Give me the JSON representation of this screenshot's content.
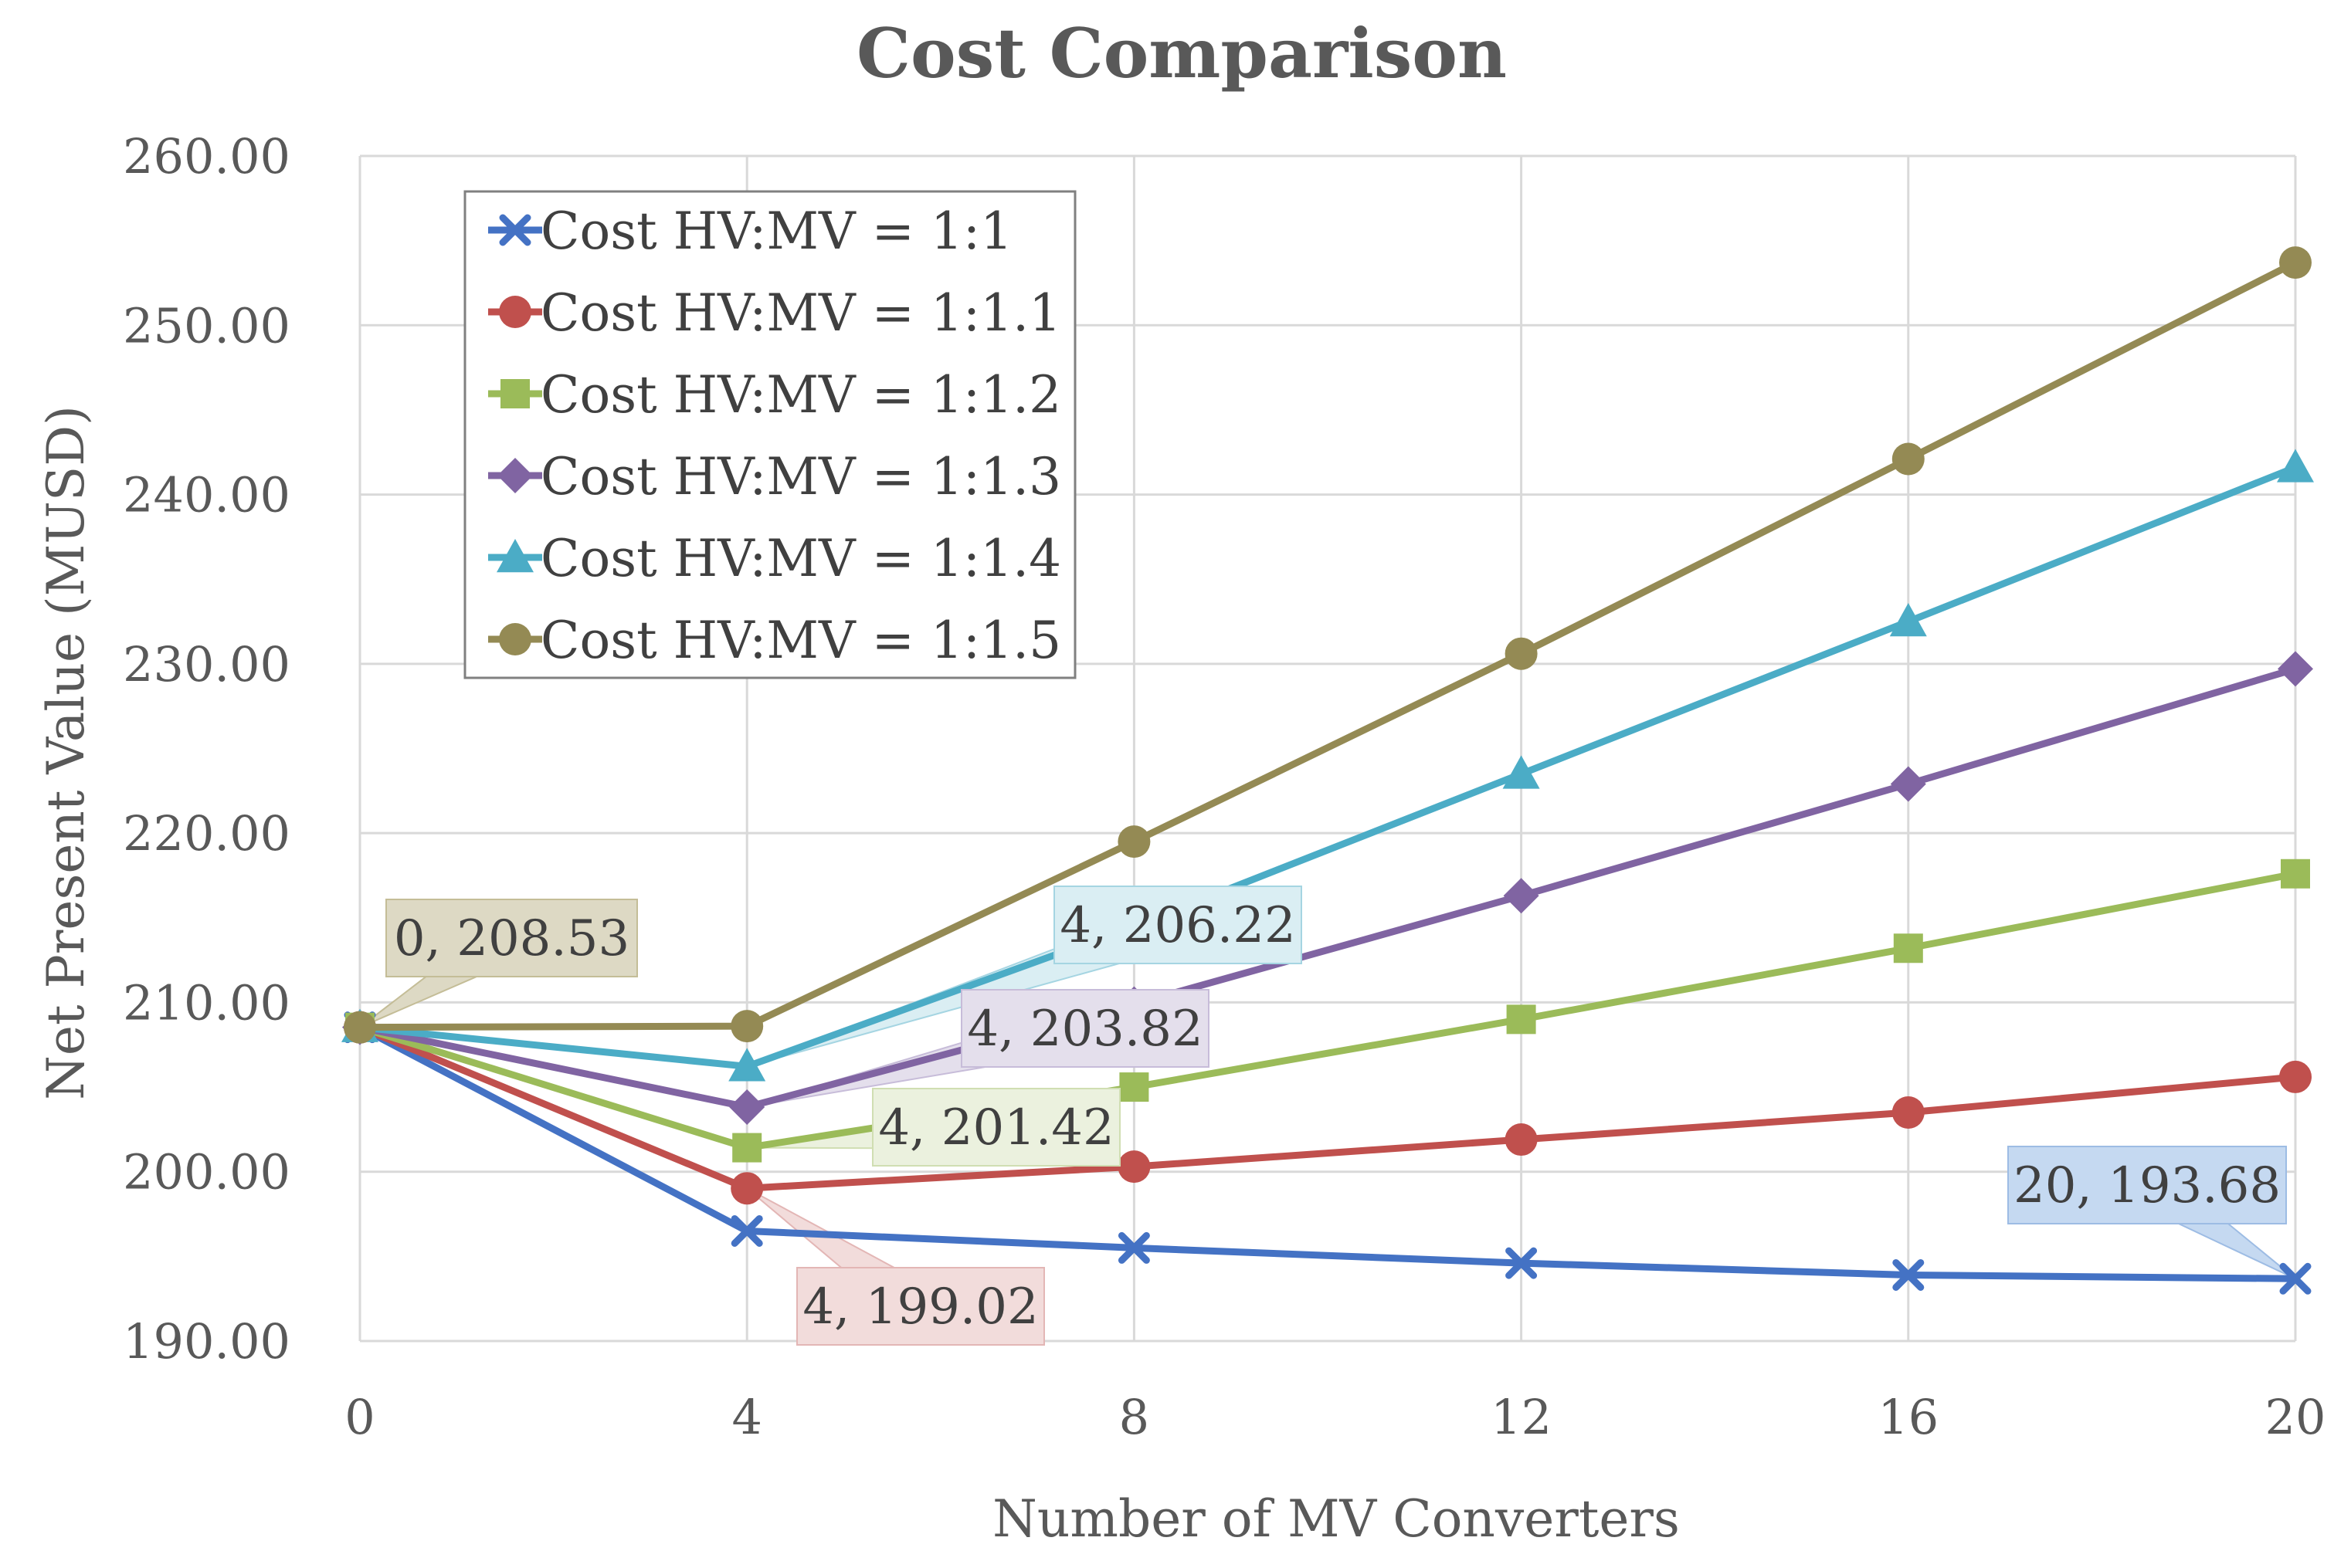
{
  "chart_data": {
    "type": "line",
    "title": "Cost Comparison",
    "xlabel": "Number of MV Converters",
    "ylabel": "Net Present Value (MUSD)",
    "x": [
      0,
      4,
      8,
      12,
      16,
      20
    ],
    "xticks": [
      "0",
      "4",
      "8",
      "12",
      "16",
      "20"
    ],
    "yticks": [
      "190.00",
      "200.00",
      "210.00",
      "220.00",
      "230.00",
      "240.00",
      "250.00",
      "260.00"
    ],
    "ylim": [
      190,
      260
    ],
    "grid": true,
    "legend_position": "top-left",
    "series": [
      {
        "name": "Cost HV:MV = 1:1",
        "color": "#4472C4",
        "marker": "x",
        "values": [
          208.53,
          196.5,
          195.5,
          194.6,
          193.9,
          193.68
        ]
      },
      {
        "name": "Cost HV:MV = 1:1.1",
        "color": "#C0504D",
        "marker": "circle",
        "values": [
          208.53,
          199.02,
          200.3,
          201.9,
          203.5,
          205.6
        ]
      },
      {
        "name": "Cost HV:MV = 1:1.2",
        "color": "#9BBB59",
        "marker": "square",
        "values": [
          208.53,
          201.42,
          205.0,
          209.0,
          213.2,
          217.6
        ]
      },
      {
        "name": "Cost HV:MV = 1:1.3",
        "color": "#8064A2",
        "marker": "diamond",
        "values": [
          208.53,
          203.82,
          209.9,
          216.3,
          222.9,
          229.7
        ]
      },
      {
        "name": "Cost HV:MV = 1:1.4",
        "color": "#4BACC6",
        "marker": "triangle",
        "values": [
          208.53,
          206.22,
          214.5,
          223.5,
          232.5,
          241.6
        ]
      },
      {
        "name": "Cost HV:MV = 1:1.5",
        "color": "#948A54",
        "marker": "circle",
        "values": [
          208.53,
          208.6,
          219.5,
          230.6,
          242.1,
          253.7
        ]
      }
    ],
    "annotations": [
      {
        "text": "0,  208.53",
        "series": 5,
        "point": 0,
        "fill": "#DDD9C4",
        "stroke": "#C4BD97"
      },
      {
        "text": "4,  206.22",
        "series": 4,
        "point": 1,
        "fill": "#DAEEF3",
        "stroke": "#A5D5E2"
      },
      {
        "text": "4,  203.82",
        "series": 3,
        "point": 1,
        "fill": "#E4DFEC",
        "stroke": "#C7BCD9"
      },
      {
        "text": "4,  201.42",
        "series": 2,
        "point": 1,
        "fill": "#EBF1DE",
        "stroke": "#D0DEB2"
      },
      {
        "text": "4,  199.02",
        "series": 1,
        "point": 1,
        "fill": "#F2DCDB",
        "stroke": "#E3B6B5"
      },
      {
        "text": "20,  193.68",
        "series": 0,
        "point": 5,
        "fill": "#C5D9F1",
        "stroke": "#9DBCE4"
      }
    ]
  }
}
